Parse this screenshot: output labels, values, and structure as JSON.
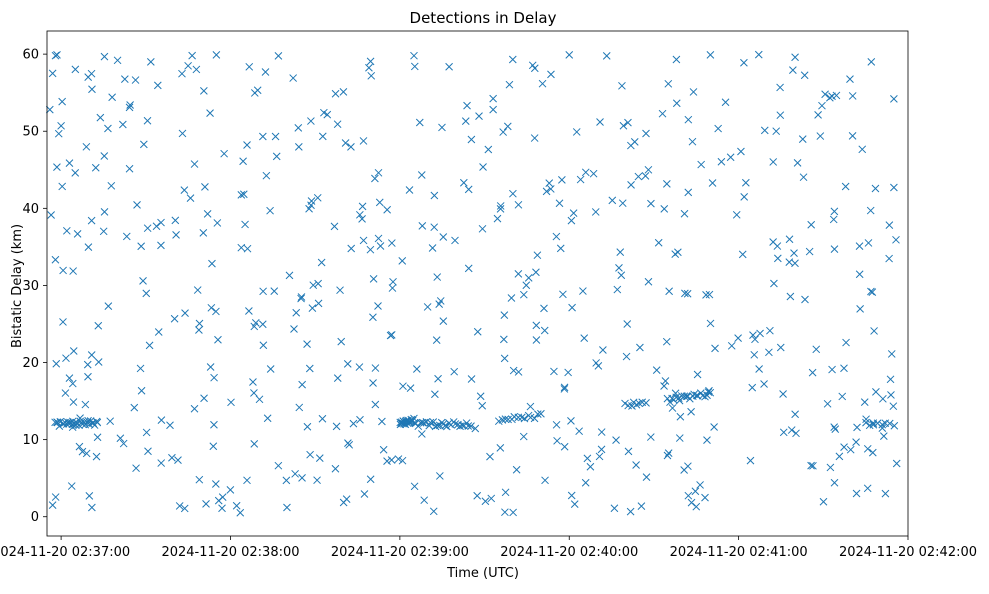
{
  "chart_data": {
    "type": "scatter",
    "title": "Detections in Delay",
    "xlabel": "Time (UTC)",
    "ylabel": "Bistatic Delay (km)",
    "marker": "x",
    "color": "#1f77b4",
    "grid": false,
    "xlim": [
      "2024-11-20 02:36:55",
      "2024-11-20 02:42:00"
    ],
    "ylim": [
      -2.5,
      63
    ],
    "x_ticks": [
      "2024-11-20 02:37:00",
      "2024-11-20 02:38:00",
      "2024-11-20 02:39:00",
      "2024-11-20 02:40:00",
      "2024-11-20 02:41:00",
      "2024-11-20 02:42:00"
    ],
    "y_ticks": [
      "0",
      "10",
      "20",
      "30",
      "40",
      "50",
      "60"
    ],
    "tracks": [
      {
        "x_start": "2024-11-20 02:36:58",
        "x_end": "2024-11-20 02:37:13",
        "y_start": 12.0,
        "y_end": 12.2,
        "count": 32
      },
      {
        "x_start": "2024-11-20 02:39:00",
        "x_end": "2024-11-20 02:39:05",
        "y_start": 12.0,
        "y_end": 12.6,
        "count": 20
      },
      {
        "x_start": "2024-11-20 02:39:05",
        "x_end": "2024-11-20 02:39:25",
        "y_start": 12.0,
        "y_end": 12.0,
        "count": 28
      },
      {
        "x_start": "2024-11-20 02:39:35",
        "x_end": "2024-11-20 02:39:50",
        "y_start": 12.6,
        "y_end": 13.1,
        "count": 14
      },
      {
        "x_start": "2024-11-20 02:40:20",
        "x_end": "2024-11-20 02:40:27",
        "y_start": 14.4,
        "y_end": 14.8,
        "count": 8
      },
      {
        "x_start": "2024-11-20 02:40:35",
        "x_end": "2024-11-20 02:40:50",
        "y_start": 15.1,
        "y_end": 16.0,
        "count": 22
      },
      {
        "x_start": "2024-11-20 02:41:45",
        "x_end": "2024-11-20 02:41:55",
        "y_start": 12.0,
        "y_end": 12.0,
        "count": 8
      }
    ],
    "scatter_sample": [
      {
        "x": "2024-11-20 02:36:56",
        "y": 52.8
      },
      {
        "x": "2024-11-20 02:36:57",
        "y": 57.5
      },
      {
        "x": "2024-11-20 02:36:58",
        "y": 59.8
      },
      {
        "x": "2024-11-20 02:37:00",
        "y": 50.7
      },
      {
        "x": "2024-11-20 02:37:05",
        "y": 44.6
      },
      {
        "x": "2024-11-20 02:37:20",
        "y": 59.2
      },
      {
        "x": "2024-11-20 02:37:55",
        "y": 59.9
      },
      {
        "x": "2024-11-20 02:38:40",
        "y": 55.1
      },
      {
        "x": "2024-11-20 02:39:05",
        "y": 59.8
      },
      {
        "x": "2024-11-20 02:39:40",
        "y": 59.3
      },
      {
        "x": "2024-11-20 02:40:00",
        "y": 59.9
      },
      {
        "x": "2024-11-20 02:40:50",
        "y": 59.9
      },
      {
        "x": "2024-11-20 02:41:20",
        "y": 59.6
      },
      {
        "x": "2024-11-20 02:41:47",
        "y": 59.0
      },
      {
        "x": "2024-11-20 02:36:57",
        "y": 1.5
      },
      {
        "x": "2024-11-20 02:37:10",
        "y": 2.7
      },
      {
        "x": "2024-11-20 02:37:42",
        "y": 1.4
      },
      {
        "x": "2024-11-20 02:37:57",
        "y": 1.1
      },
      {
        "x": "2024-11-20 02:38:20",
        "y": 1.2
      },
      {
        "x": "2024-11-20 02:39:12",
        "y": 0.7
      },
      {
        "x": "2024-11-20 02:40:16",
        "y": 1.1
      },
      {
        "x": "2024-11-20 02:40:45",
        "y": 1.3
      },
      {
        "x": "2024-11-20 02:41:52",
        "y": 3.0
      },
      {
        "x": "2024-11-20 02:41:56",
        "y": 6.9
      },
      {
        "x": "2024-11-20 02:41:55",
        "y": 42.7
      },
      {
        "x": "2024-11-20 02:41:55",
        "y": 54.2
      }
    ],
    "scatter_count": 560,
    "seed": 7
  }
}
